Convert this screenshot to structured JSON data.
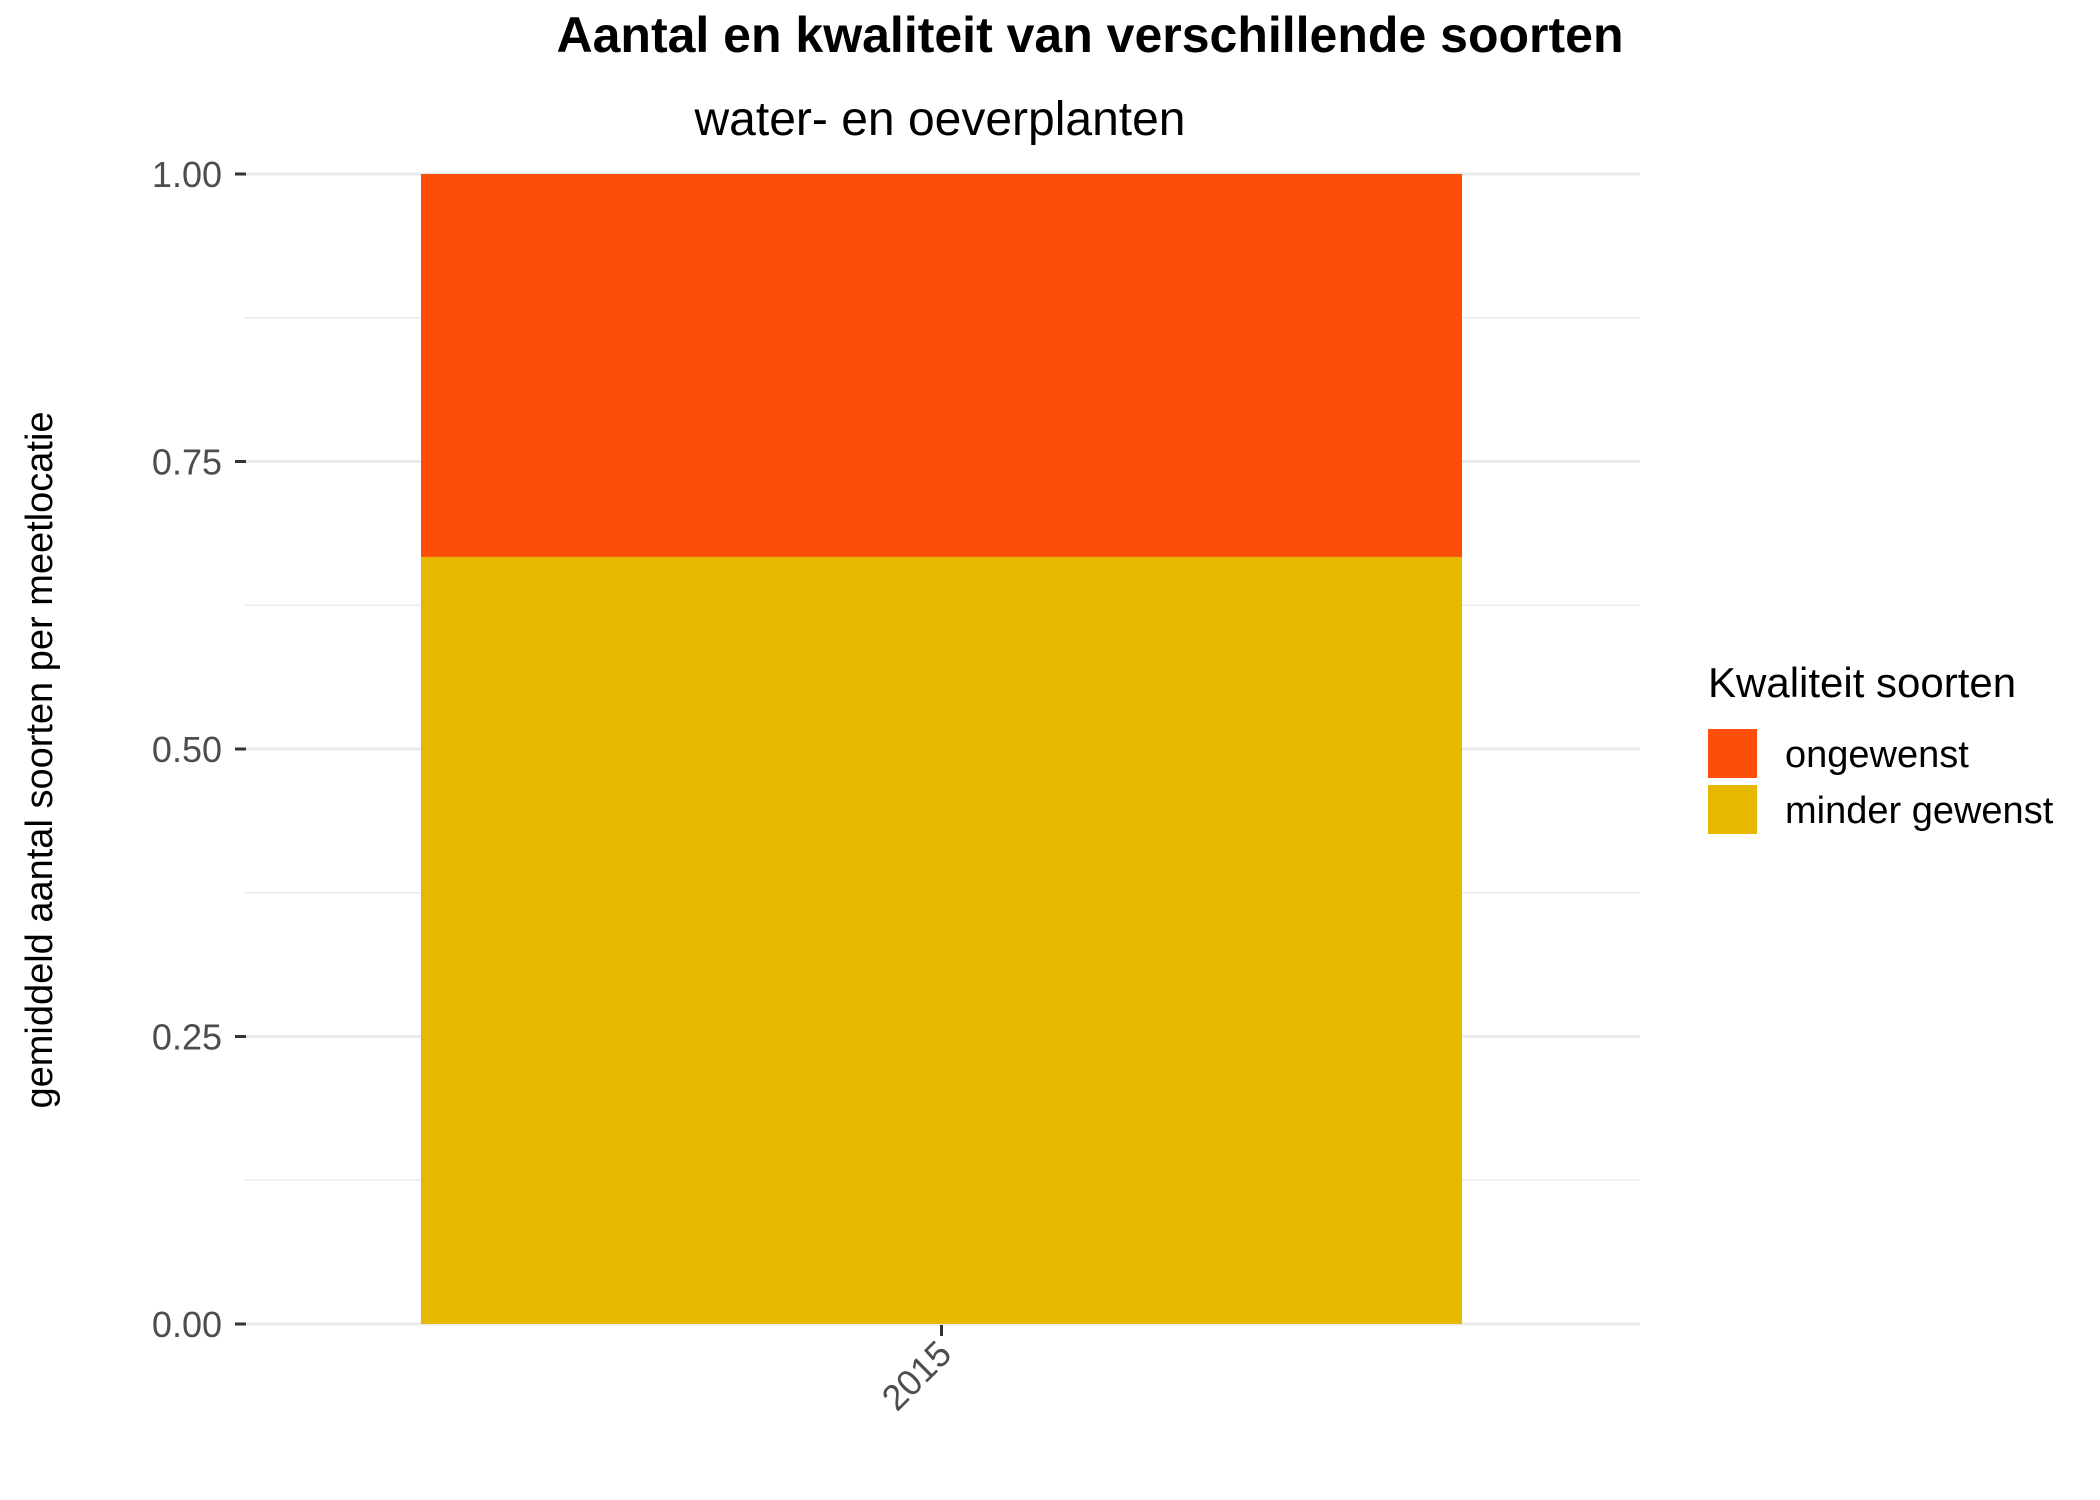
{
  "chart_data": {
    "type": "bar",
    "stacked": true,
    "title": "Aantal en kwaliteit van verschillende soorten",
    "subtitle": "water- en oeverplanten",
    "xlabel": "",
    "ylabel": "gemiddeld aantal soorten per meetlocatie",
    "categories": [
      "2015"
    ],
    "ylim": [
      0,
      1
    ],
    "yticks": [
      "0.00",
      "0.25",
      "0.50",
      "0.75",
      "1.00"
    ],
    "ytick_values": [
      0,
      0.25,
      0.5,
      0.75,
      1.0
    ],
    "grid": true,
    "legend_title": "Kwaliteit soorten",
    "legend_position": "right",
    "series": [
      {
        "name": "ongewenst",
        "values": [
          0.333
        ],
        "color": "#FC4E07"
      },
      {
        "name": "minder gewenst",
        "values": [
          0.667
        ],
        "color": "#E7B800"
      }
    ]
  }
}
